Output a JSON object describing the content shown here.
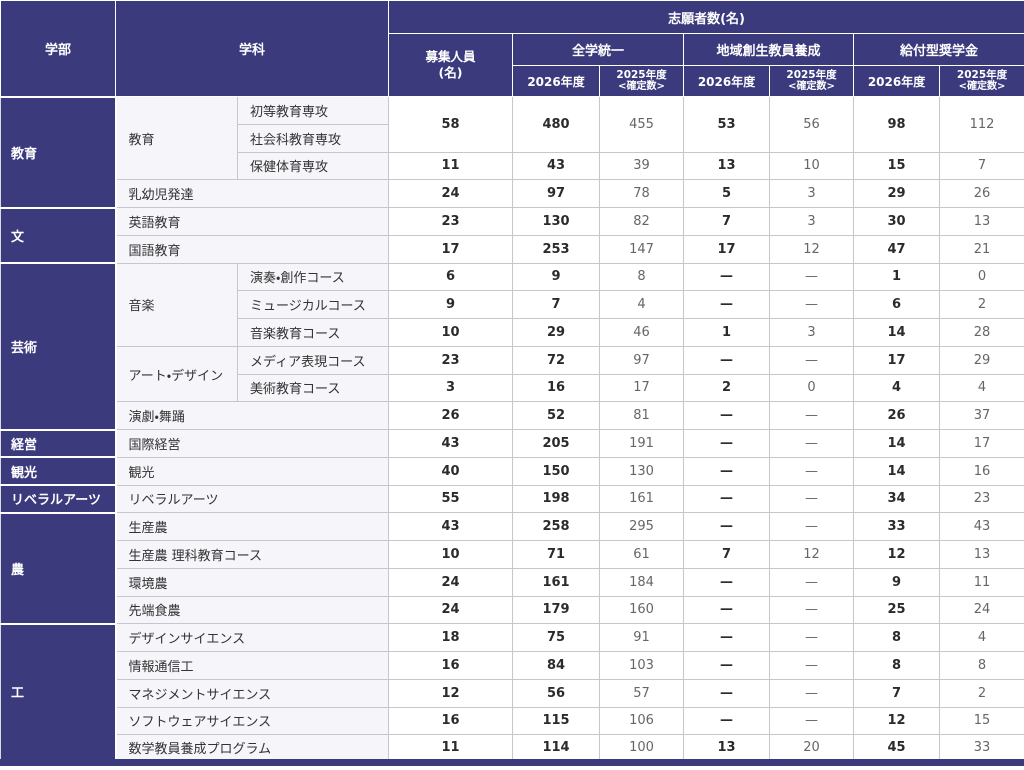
{
  "colors": {
    "header_bg": "#3b3a7d",
    "subcell_bg": "#f5f5fa",
    "grid_line": "#c6c6cf",
    "current_year_text": "#2b2b2b",
    "prev_year_text": "#666666"
  },
  "table": {
    "header": {
      "faculty": "学部",
      "department": "学科",
      "applicants": "志願者数(名)",
      "capacity_line1": "募集人員",
      "capacity_line2": "(名)",
      "groups": [
        {
          "label": "全学統一"
        },
        {
          "label": "地域創生教員養成"
        },
        {
          "label": "給付型奨学金"
        }
      ],
      "year_current": "2026年度",
      "year_prev_line1": "2025年度",
      "year_prev_line2": "<確定数>"
    },
    "rows": [
      {
        "faculty": "教育",
        "faculty_rowspan": 4,
        "dept": "教育",
        "dept_rowspan": 3,
        "course": "初等教育専攻",
        "values_rowspan": 2,
        "values": [
          "58",
          "480",
          "455",
          "53",
          "56",
          "98",
          "112"
        ]
      },
      {
        "course": "社会科教育専攻"
      },
      {
        "course": "保健体育専攻",
        "values": [
          "11",
          "43",
          "39",
          "13",
          "10",
          "15",
          "7"
        ]
      },
      {
        "dept": "乳幼児発達",
        "dept_colspan": 2,
        "values": [
          "24",
          "97",
          "78",
          "5",
          "3",
          "29",
          "26"
        ]
      },
      {
        "faculty": "文",
        "faculty_rowspan": 2,
        "dept": "英語教育",
        "dept_colspan": 2,
        "values": [
          "23",
          "130",
          "82",
          "7",
          "3",
          "30",
          "13"
        ]
      },
      {
        "dept": "国語教育",
        "dept_colspan": 2,
        "values": [
          "17",
          "253",
          "147",
          "17",
          "12",
          "47",
          "21"
        ]
      },
      {
        "faculty": "芸術",
        "faculty_rowspan": 6,
        "dept": "音楽",
        "dept_rowspan": 3,
        "course": "演奏・創作コース",
        "values": [
          "6",
          "9",
          "8",
          "—",
          "—",
          "1",
          "0"
        ]
      },
      {
        "course": "ミュージカルコース",
        "values": [
          "9",
          "7",
          "4",
          "—",
          "—",
          "6",
          "2"
        ]
      },
      {
        "course": "音楽教育コース",
        "values": [
          "10",
          "29",
          "46",
          "1",
          "3",
          "14",
          "28"
        ]
      },
      {
        "dept": "アート・デザイン",
        "dept_rowspan": 2,
        "course": "メディア表現コース",
        "values": [
          "23",
          "72",
          "97",
          "—",
          "—",
          "17",
          "29"
        ]
      },
      {
        "course": "美術教育コース",
        "values": [
          "3",
          "16",
          "17",
          "2",
          "0",
          "4",
          "4"
        ]
      },
      {
        "dept": "演劇・舞踊",
        "dept_colspan": 2,
        "values": [
          "26",
          "52",
          "81",
          "—",
          "—",
          "26",
          "37"
        ]
      },
      {
        "faculty": "経営",
        "faculty_rowspan": 1,
        "dept": "国際経営",
        "dept_colspan": 2,
        "values": [
          "43",
          "205",
          "191",
          "—",
          "—",
          "14",
          "17"
        ]
      },
      {
        "faculty": "観光",
        "faculty_rowspan": 1,
        "dept": "観光",
        "dept_colspan": 2,
        "values": [
          "40",
          "150",
          "130",
          "—",
          "—",
          "14",
          "16"
        ]
      },
      {
        "faculty": "リベラルアーツ",
        "faculty_rowspan": 1,
        "dept": "リベラルアーツ",
        "dept_colspan": 2,
        "values": [
          "55",
          "198",
          "161",
          "—",
          "—",
          "34",
          "23"
        ]
      },
      {
        "faculty": "農",
        "faculty_rowspan": 4,
        "dept": "生産農",
        "dept_colspan": 2,
        "values": [
          "43",
          "258",
          "295",
          "—",
          "—",
          "33",
          "43"
        ]
      },
      {
        "dept": "生産農 理科教育コース",
        "dept_colspan": 2,
        "values": [
          "10",
          "71",
          "61",
          "7",
          "12",
          "12",
          "13"
        ]
      },
      {
        "dept": "環境農",
        "dept_colspan": 2,
        "values": [
          "24",
          "161",
          "184",
          "—",
          "—",
          "9",
          "11"
        ]
      },
      {
        "dept": "先端食農",
        "dept_colspan": 2,
        "values": [
          "24",
          "179",
          "160",
          "—",
          "—",
          "25",
          "24"
        ]
      },
      {
        "faculty": "工",
        "faculty_rowspan": 5,
        "dept": "デザインサイエンス",
        "dept_colspan": 2,
        "values": [
          "18",
          "75",
          "91",
          "—",
          "—",
          "8",
          "4"
        ]
      },
      {
        "dept": "情報通信工",
        "dept_colspan": 2,
        "values": [
          "16",
          "84",
          "103",
          "—",
          "—",
          "8",
          "8"
        ]
      },
      {
        "dept": "マネジメントサイエンス",
        "dept_colspan": 2,
        "values": [
          "12",
          "56",
          "57",
          "—",
          "—",
          "7",
          "2"
        ]
      },
      {
        "dept": "ソフトウェアサイエンス",
        "dept_colspan": 2,
        "values": [
          "16",
          "115",
          "106",
          "—",
          "—",
          "12",
          "15"
        ]
      },
      {
        "dept": "数学教員養成プログラム",
        "dept_colspan": 2,
        "values": [
          "11",
          "114",
          "100",
          "13",
          "20",
          "45",
          "33"
        ]
      }
    ]
  }
}
